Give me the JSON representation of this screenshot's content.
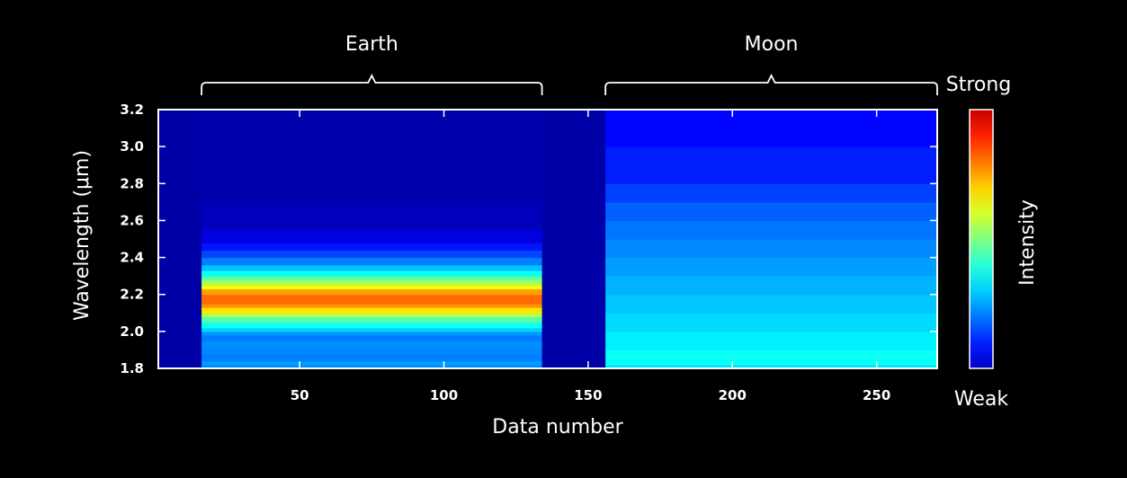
{
  "chart_data": {
    "type": "heatmap",
    "title": "",
    "xlabel": "Data number",
    "ylabel": "Wavelength (μm)",
    "xlim": [
      1,
      271
    ],
    "ylim": [
      1.8,
      3.2
    ],
    "xticks": [
      50,
      100,
      150,
      200,
      250
    ],
    "yticks": [
      1.8,
      2.0,
      2.2,
      2.4,
      2.6,
      2.8,
      3.0,
      3.2
    ],
    "ytick_labels": [
      "1.8",
      "2.0",
      "2.2",
      "2.4",
      "2.6",
      "2.8",
      "3.0",
      "3.2"
    ],
    "groups": [
      {
        "label": "Earth",
        "x_range": [
          16,
          134
        ]
      },
      {
        "label": "Moon",
        "x_range": [
          156,
          271
        ]
      }
    ],
    "colorbar": {
      "title": "Intensity",
      "high_label": "Strong",
      "low_label": "Weak"
    },
    "segments": [
      {
        "name": "Earth",
        "x_range": [
          16,
          134
        ],
        "wavelength": [
          1.8,
          1.82,
          1.84,
          1.88,
          1.92,
          1.95,
          1.98,
          2.0,
          2.02,
          2.05,
          2.08,
          2.1,
          2.13,
          2.15,
          2.18,
          2.2,
          2.23,
          2.25,
          2.28,
          2.3,
          2.33,
          2.36,
          2.4,
          2.44,
          2.48,
          2.55,
          2.7,
          3.2
        ],
        "intensity": [
          0.22,
          0.3,
          0.26,
          0.24,
          0.28,
          0.25,
          0.24,
          0.3,
          0.36,
          0.42,
          0.5,
          0.6,
          0.7,
          0.76,
          0.78,
          0.76,
          0.68,
          0.58,
          0.5,
          0.42,
          0.35,
          0.28,
          0.22,
          0.17,
          0.12,
          0.07,
          0.05,
          0.04
        ]
      },
      {
        "name": "Moon",
        "x_range": [
          156,
          271
        ],
        "wavelength": [
          1.8,
          1.82,
          1.9,
          2.0,
          2.1,
          2.2,
          2.3,
          2.4,
          2.5,
          2.6,
          2.7,
          2.8,
          3.0,
          3.2
        ],
        "intensity": [
          0.3,
          0.4,
          0.37,
          0.35,
          0.33,
          0.31,
          0.29,
          0.27,
          0.25,
          0.23,
          0.21,
          0.17,
          0.14,
          0.12
        ]
      }
    ],
    "background_intensity": 0.04
  }
}
